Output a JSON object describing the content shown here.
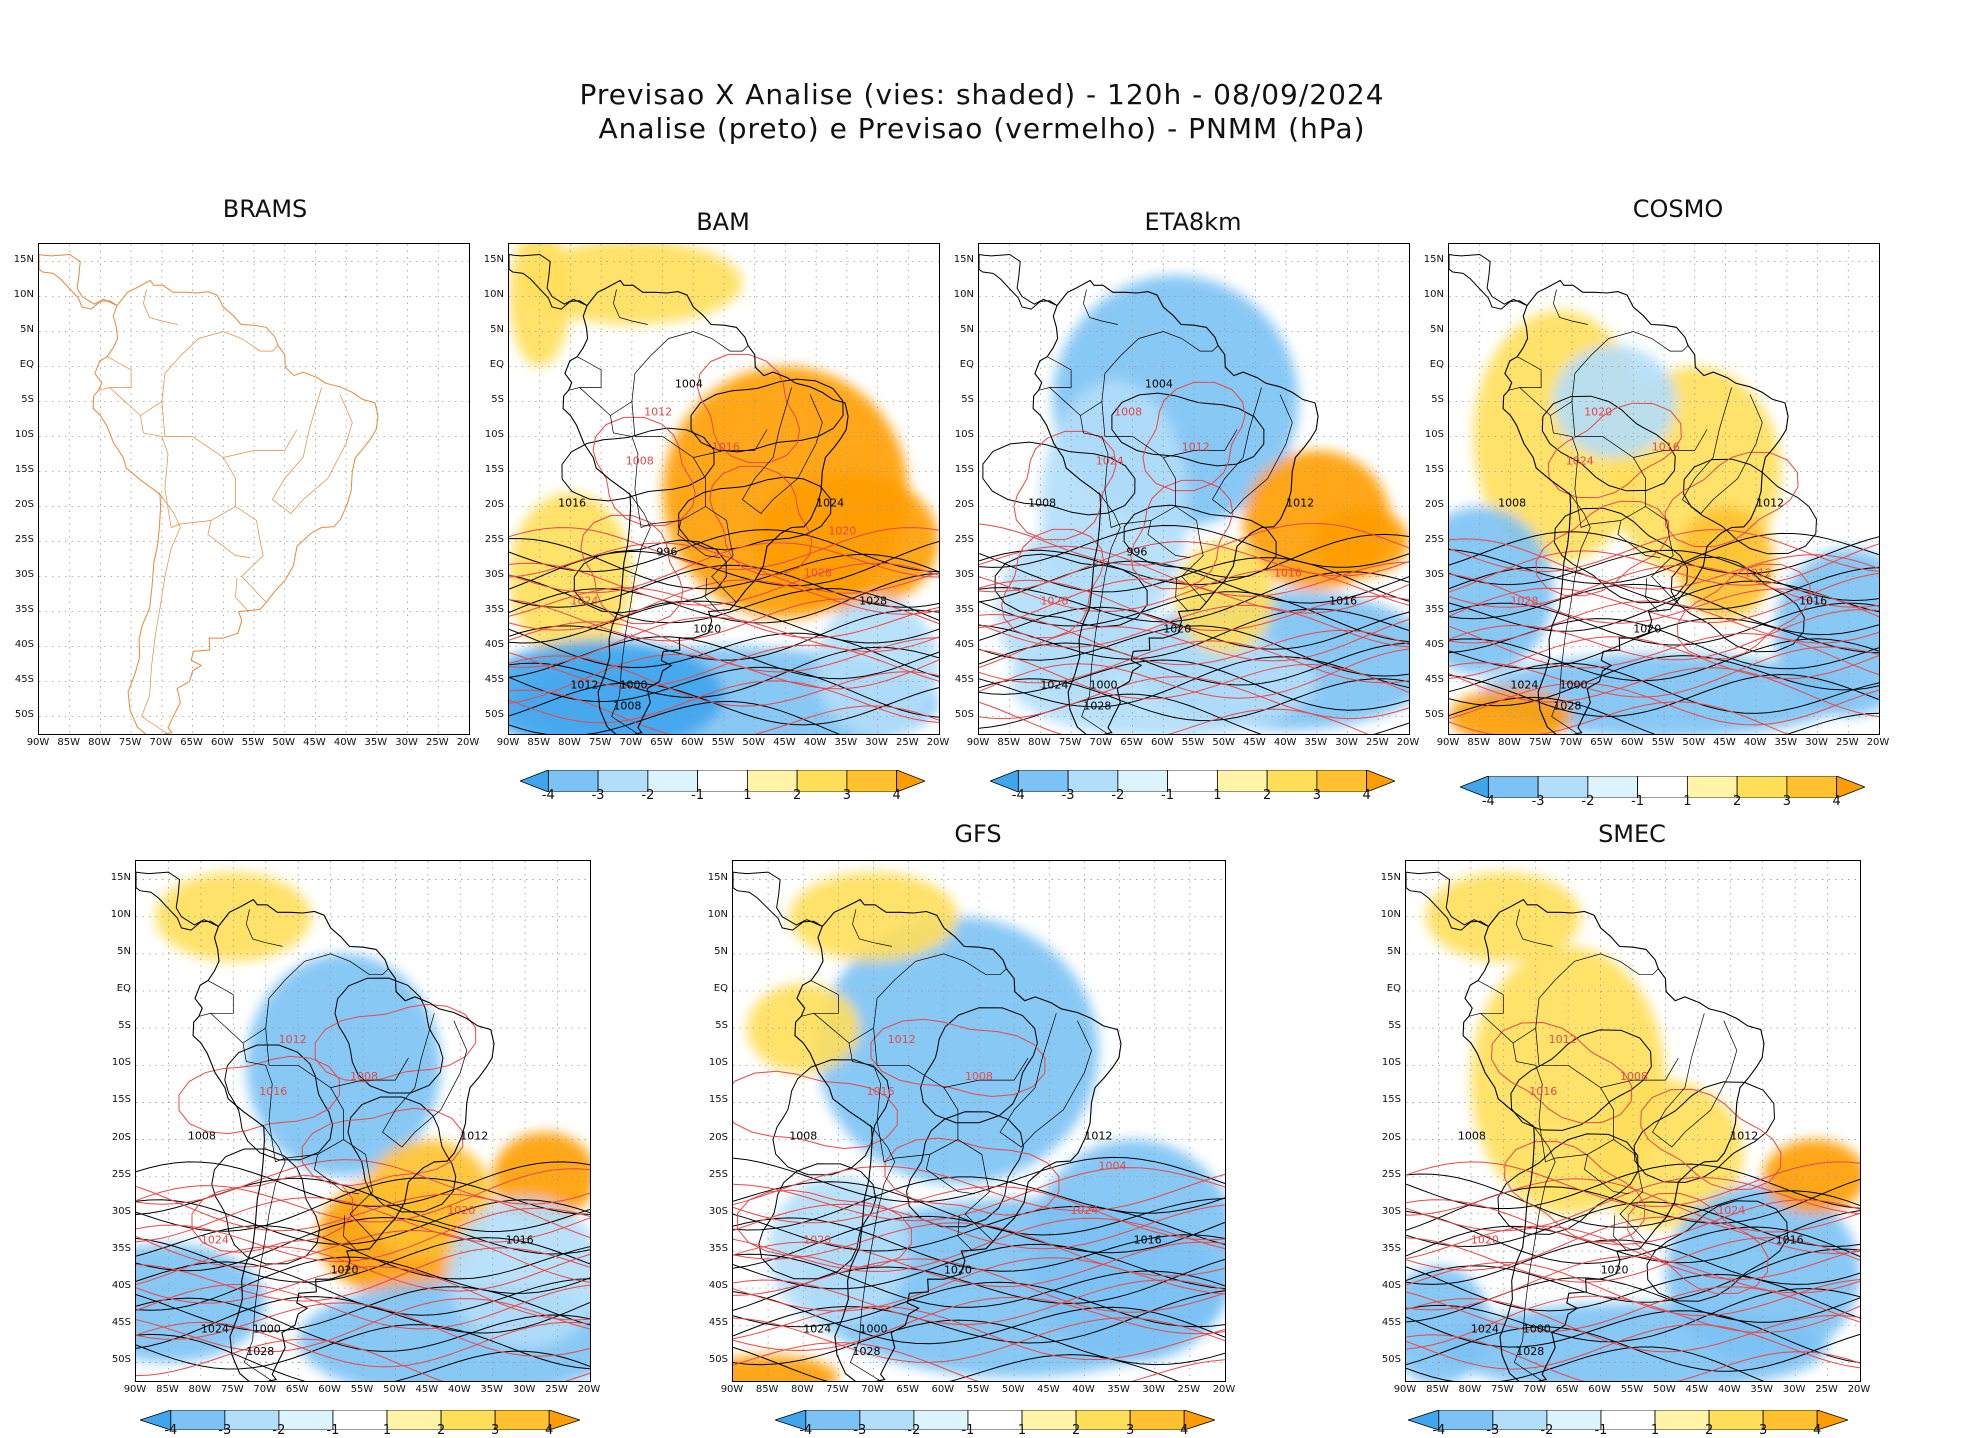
{
  "header": {
    "title_line1": "Previsao X Analise (vies: shaded) - 120h - 08/09/2024",
    "title_line2": "Analise (preto) e Previsao (vermelho) - PNMM (hPa)"
  },
  "lat_labels": [
    "15N",
    "10N",
    "5N",
    "EQ",
    "5S",
    "10S",
    "15S",
    "20S",
    "25S",
    "30S",
    "35S",
    "40S",
    "45S",
    "50S"
  ],
  "lon_labels": [
    "90W",
    "85W",
    "80W",
    "75W",
    "70W",
    "65W",
    "60W",
    "55W",
    "50W",
    "45W",
    "40W",
    "35W",
    "30W",
    "25W",
    "20W"
  ],
  "colorbar": {
    "labels": [
      "-4",
      "-3",
      "-2",
      "-1",
      "1",
      "2",
      "3",
      "4"
    ],
    "colors": [
      "#3fa6ee",
      "#7cc2f4",
      "#b2defa",
      "#dcf4fc",
      "#ffffff",
      "#fff4a8",
      "#ffdf5a",
      "#ffc12e",
      "#ff9d00"
    ]
  },
  "colors": {
    "analysis_contour": "#000000",
    "forecast_contour": "#e8484a",
    "coastline": "#e8883a",
    "grid": "#9a9a9a"
  },
  "panels": [
    {
      "name": "BRAMS",
      "has_colorbar": false,
      "labels_black": [],
      "labels_red": []
    },
    {
      "name": "BAM",
      "has_colorbar": true,
      "labels_black": [
        "1016",
        "1024",
        "1028",
        "1020",
        "1012",
        "1008",
        "1000",
        "996",
        "1004"
      ],
      "labels_red": [
        "1016",
        "1012",
        "1008",
        "1024",
        "1028",
        "1020"
      ]
    },
    {
      "name": "ETA8km",
      "has_colorbar": true,
      "labels_black": [
        "1008",
        "1012",
        "1016",
        "1020",
        "1024",
        "1028",
        "1000",
        "996",
        "1004"
      ],
      "labels_red": [
        "1012",
        "1008",
        "1024",
        "1028",
        "1016"
      ]
    },
    {
      "name": "COSMO",
      "has_colorbar": true,
      "labels_black": [
        "1008",
        "1012",
        "1016",
        "1020",
        "1024",
        "1028",
        "1000"
      ],
      "labels_red": [
        "1016",
        "1020",
        "1024",
        "1028",
        "1012"
      ]
    },
    {
      "name": "",
      "has_colorbar": true,
      "labels_black": [
        "1008",
        "1012",
        "1016",
        "1020",
        "1024",
        "1028",
        "1000"
      ],
      "labels_red": [
        "1008",
        "1012",
        "1016",
        "1024",
        "1020"
      ]
    },
    {
      "name": "GFS",
      "has_colorbar": true,
      "labels_black": [
        "1008",
        "1012",
        "1016",
        "1020",
        "1024",
        "1028",
        "1000"
      ],
      "labels_red": [
        "1008",
        "1012",
        "1016",
        "1020",
        "1024",
        "1004"
      ]
    },
    {
      "name": "SMEC",
      "has_colorbar": true,
      "labels_black": [
        "1008",
        "1012",
        "1016",
        "1020",
        "1024",
        "1028",
        "1000"
      ],
      "labels_red": [
        "1008",
        "1012",
        "1016",
        "1020",
        "1024"
      ]
    }
  ]
}
